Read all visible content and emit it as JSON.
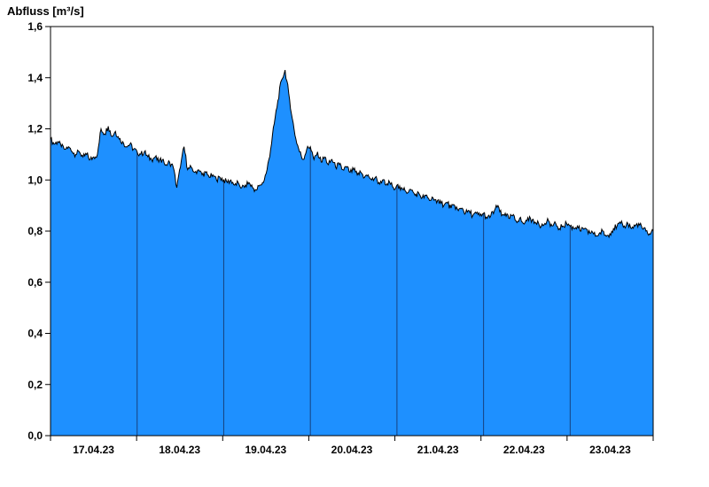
{
  "page": {
    "background": "#ffffff"
  },
  "chart_data": {
    "type": "area",
    "title": "Abfluss [m³/s]",
    "xlabel": "",
    "ylabel": "Abfluss [m³/s]",
    "ylim": [
      0,
      1.6
    ],
    "ytick_step": 0.2,
    "ytick_labels": [
      "0,0",
      "0,2",
      "0,4",
      "0,6",
      "0,8",
      "1,0",
      "1,2",
      "1,4",
      "1,6"
    ],
    "x_day_labels": [
      "17.04.23",
      "18.04.23",
      "19.04.23",
      "20.04.23",
      "21.04.23",
      "22.04.23",
      "23.04.23"
    ],
    "days": 7,
    "hours_per_point": 1,
    "grid": "vertical-day-boundaries",
    "legend_position": "none",
    "fill_color": "#1e90ff",
    "line_color": "#000000",
    "grid_color": "#17417e",
    "axis_color": "#000000",
    "noise_amplitude": 0.012,
    "values": [
      1.16,
      1.14,
      1.15,
      1.13,
      1.12,
      1.13,
      1.11,
      1.1,
      1.11,
      1.09,
      1.1,
      1.08,
      1.09,
      1.1,
      1.2,
      1.18,
      1.21,
      1.17,
      1.19,
      1.16,
      1.15,
      1.13,
      1.14,
      1.12,
      1.11,
      1.1,
      1.11,
      1.09,
      1.08,
      1.09,
      1.07,
      1.08,
      1.06,
      1.07,
      1.05,
      0.97,
      1.05,
      1.13,
      1.04,
      1.05,
      1.03,
      1.04,
      1.02,
      1.03,
      1.01,
      1.02,
      1.0,
      1.01,
      1.0,
      0.99,
      1.0,
      0.98,
      0.99,
      0.97,
      0.98,
      0.99,
      0.97,
      0.96,
      0.98,
      0.99,
      1.04,
      1.12,
      1.22,
      1.31,
      1.39,
      1.43,
      1.34,
      1.24,
      1.16,
      1.11,
      1.08,
      1.12,
      1.13,
      1.08,
      1.11,
      1.07,
      1.09,
      1.06,
      1.08,
      1.05,
      1.06,
      1.04,
      1.05,
      1.03,
      1.04,
      1.02,
      1.03,
      1.01,
      1.02,
      1.0,
      1.01,
      0.99,
      1.0,
      0.98,
      0.99,
      0.97,
      0.98,
      0.96,
      0.97,
      0.95,
      0.96,
      0.94,
      0.95,
      0.93,
      0.94,
      0.92,
      0.93,
      0.91,
      0.92,
      0.9,
      0.91,
      0.89,
      0.9,
      0.88,
      0.89,
      0.87,
      0.88,
      0.86,
      0.87,
      0.86,
      0.87,
      0.85,
      0.86,
      0.88,
      0.9,
      0.86,
      0.87,
      0.85,
      0.86,
      0.84,
      0.85,
      0.83,
      0.84,
      0.85,
      0.83,
      0.84,
      0.82,
      0.83,
      0.84,
      0.82,
      0.83,
      0.81,
      0.82,
      0.83,
      0.82,
      0.81,
      0.82,
      0.8,
      0.81,
      0.79,
      0.8,
      0.78,
      0.79,
      0.8,
      0.78,
      0.79,
      0.81,
      0.82,
      0.83,
      0.82,
      0.83,
      0.81,
      0.82,
      0.83,
      0.81,
      0.8,
      0.79,
      0.8
    ]
  }
}
